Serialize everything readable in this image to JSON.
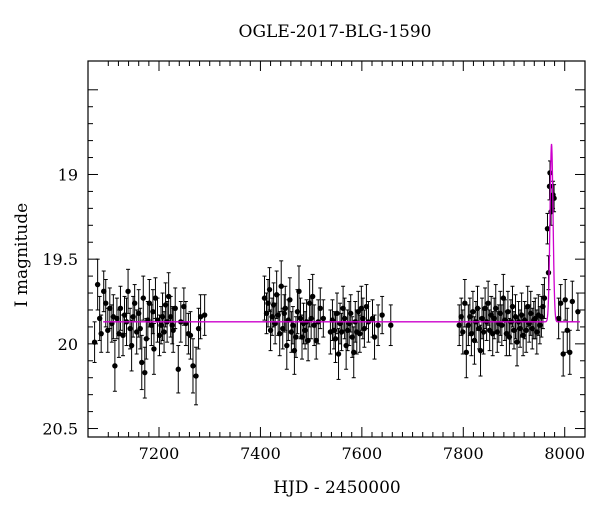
{
  "chart_data": {
    "type": "scatter",
    "title": "OGLE-2017-BLG-1590",
    "xlabel": "HJD - 2450000",
    "ylabel": "I magnitude",
    "xlim": [
      7060,
      8040
    ],
    "ylim": [
      20.55,
      18.33
    ],
    "y_inverted": true,
    "x_ticks": [
      7200,
      7400,
      7600,
      7800,
      8000
    ],
    "x_tick_labels": [
      "7200",
      "7400",
      "7600",
      "7800",
      "8000"
    ],
    "y_ticks": [
      19,
      19.5,
      20,
      20.5
    ],
    "y_tick_labels": [
      "19",
      "19.5",
      "20",
      "20.5"
    ],
    "grid": false,
    "colors": {
      "data": "#000000",
      "model": "#cc00cc"
    },
    "series": [
      {
        "kind": "points_with_errorbars",
        "points": [
          [
            7073,
            19.99,
            0.12
          ],
          [
            7079,
            19.65,
            0.15
          ],
          [
            7083,
            19.85,
            0.13
          ],
          [
            7086,
            19.94,
            0.11
          ],
          [
            7091,
            19.69,
            0.12
          ],
          [
            7095,
            19.76,
            0.14
          ],
          [
            7099,
            19.92,
            0.13
          ],
          [
            7103,
            19.79,
            0.12
          ],
          [
            7107,
            19.88,
            0.11
          ],
          [
            7110,
            19.84,
            0.13
          ],
          [
            7113,
            20.13,
            0.15
          ],
          [
            7117,
            19.85,
            0.12
          ],
          [
            7121,
            19.94,
            0.14
          ],
          [
            7124,
            19.79,
            0.13
          ],
          [
            7129,
            19.95,
            0.12
          ],
          [
            7132,
            19.83,
            0.11
          ],
          [
            7136,
            19.87,
            0.14
          ],
          [
            7139,
            19.69,
            0.13
          ],
          [
            7143,
            19.91,
            0.12
          ],
          [
            7146,
            20.01,
            0.15
          ],
          [
            7149,
            19.84,
            0.12
          ],
          [
            7152,
            19.76,
            0.11
          ],
          [
            7156,
            19.93,
            0.13
          ],
          [
            7160,
            19.82,
            0.14
          ],
          [
            7163,
            19.91,
            0.12
          ],
          [
            7166,
            20.11,
            0.16
          ],
          [
            7169,
            19.73,
            0.13
          ],
          [
            7172,
            20.17,
            0.15
          ],
          [
            7175,
            19.97,
            0.12
          ],
          [
            7178,
            19.86,
            0.11
          ],
          [
            7181,
            19.76,
            0.14
          ],
          [
            7185,
            19.89,
            0.12
          ],
          [
            7188,
            19.81,
            0.13
          ],
          [
            7190,
            20.03,
            0.15
          ],
          [
            7193,
            19.73,
            0.12
          ],
          [
            7197,
            19.86,
            0.13
          ],
          [
            7201,
            19.95,
            0.12
          ],
          [
            7204,
            19.89,
            0.11
          ],
          [
            7207,
            19.84,
            0.14
          ],
          [
            7210,
            19.93,
            0.12
          ],
          [
            7213,
            19.77,
            0.13
          ],
          [
            7216,
            19.87,
            0.12
          ],
          [
            7219,
            19.72,
            0.14
          ],
          [
            7223,
            19.84,
            0.12
          ],
          [
            7226,
            19.89,
            0.11
          ],
          [
            7228,
            19.92,
            0.13
          ],
          [
            7232,
            19.79,
            0.12
          ],
          [
            7238,
            20.15,
            0.14
          ],
          [
            7243,
            19.87,
            0.12
          ],
          [
            7249,
            19.78,
            0.11
          ],
          [
            7253,
            19.88,
            0.13
          ],
          [
            7258,
            19.94,
            0.12
          ],
          [
            7262,
            19.95,
            0.14
          ],
          [
            7267,
            20.13,
            0.16
          ],
          [
            7273,
            20.19,
            0.17
          ],
          [
            7278,
            19.91,
            0.12
          ],
          [
            7282,
            19.84,
            0.13
          ],
          [
            7290,
            19.83,
            0.12
          ],
          [
            7408,
            19.73,
            0.13
          ],
          [
            7412,
            19.82,
            0.12
          ],
          [
            7415,
            19.76,
            0.14
          ],
          [
            7418,
            19.68,
            0.13
          ],
          [
            7420,
            19.92,
            0.12
          ],
          [
            7423,
            19.84,
            0.11
          ],
          [
            7426,
            19.77,
            0.13
          ],
          [
            7429,
            19.88,
            0.12
          ],
          [
            7432,
            19.71,
            0.14
          ],
          [
            7435,
            19.83,
            0.12
          ],
          [
            7438,
            19.94,
            0.13
          ],
          [
            7441,
            19.66,
            0.15
          ],
          [
            7444,
            19.91,
            0.12
          ],
          [
            7447,
            19.82,
            0.11
          ],
          [
            7449,
            19.79,
            0.13
          ],
          [
            7452,
            20.01,
            0.14
          ],
          [
            7455,
            19.86,
            0.12
          ],
          [
            7458,
            19.74,
            0.13
          ],
          [
            7461,
            19.93,
            0.12
          ],
          [
            7464,
            19.89,
            0.11
          ],
          [
            7467,
            20.04,
            0.14
          ],
          [
            7470,
            19.96,
            0.12
          ],
          [
            7473,
            19.81,
            0.13
          ],
          [
            7476,
            19.69,
            0.15
          ],
          [
            7479,
            19.85,
            0.12
          ],
          [
            7482,
            19.96,
            0.13
          ],
          [
            7485,
            19.88,
            0.12
          ],
          [
            7488,
            19.92,
            0.11
          ],
          [
            7491,
            19.87,
            0.13
          ],
          [
            7494,
            19.98,
            0.12
          ],
          [
            7497,
            19.76,
            0.14
          ],
          [
            7500,
            19.85,
            0.12
          ],
          [
            7503,
            19.72,
            0.13
          ],
          [
            7506,
            19.89,
            0.12
          ],
          [
            7510,
            19.98,
            0.11
          ],
          [
            7514,
            19.87,
            0.13
          ],
          [
            7518,
            19.79,
            0.12
          ],
          [
            7524,
            19.85,
            0.11
          ],
          [
            7538,
            19.93,
            0.13
          ],
          [
            7542,
            19.86,
            0.12
          ],
          [
            7545,
            19.92,
            0.11
          ],
          [
            7548,
            19.97,
            0.14
          ],
          [
            7551,
            19.82,
            0.12
          ],
          [
            7554,
            20.06,
            0.15
          ],
          [
            7557,
            19.88,
            0.12
          ],
          [
            7560,
            19.93,
            0.11
          ],
          [
            7563,
            19.79,
            0.13
          ],
          [
            7566,
            19.85,
            0.12
          ],
          [
            7569,
            20.01,
            0.14
          ],
          [
            7572,
            19.92,
            0.12
          ],
          [
            7575,
            19.88,
            0.13
          ],
          [
            7578,
            19.82,
            0.11
          ],
          [
            7581,
            19.96,
            0.12
          ],
          [
            7584,
            20.05,
            0.15
          ],
          [
            7587,
            19.87,
            0.12
          ],
          [
            7590,
            19.93,
            0.13
          ],
          [
            7593,
            19.81,
            0.12
          ],
          [
            7596,
            19.94,
            0.11
          ],
          [
            7599,
            19.79,
            0.13
          ],
          [
            7602,
            19.85,
            0.12
          ],
          [
            7605,
            19.91,
            0.11
          ],
          [
            7609,
            19.78,
            0.13
          ],
          [
            7613,
            19.87,
            0.12
          ],
          [
            7621,
            19.85,
            0.11
          ],
          [
            7625,
            19.96,
            0.13
          ],
          [
            7632,
            19.89,
            0.12
          ],
          [
            7640,
            19.83,
            0.11
          ],
          [
            7657,
            19.89,
            0.12
          ],
          [
            7792,
            19.89,
            0.12
          ],
          [
            7796,
            19.84,
            0.11
          ],
          [
            7799,
            19.93,
            0.13
          ],
          [
            7803,
            19.76,
            0.14
          ],
          [
            7806,
            20.05,
            0.15
          ],
          [
            7810,
            19.89,
            0.12
          ],
          [
            7813,
            19.84,
            0.11
          ],
          [
            7816,
            19.94,
            0.13
          ],
          [
            7819,
            19.81,
            0.12
          ],
          [
            7822,
            19.98,
            0.14
          ],
          [
            7825,
            19.87,
            0.12
          ],
          [
            7828,
            19.79,
            0.13
          ],
          [
            7831,
            19.91,
            0.12
          ],
          [
            7834,
            20.04,
            0.15
          ],
          [
            7837,
            19.85,
            0.12
          ],
          [
            7840,
            19.93,
            0.13
          ],
          [
            7843,
            19.79,
            0.12
          ],
          [
            7846,
            19.87,
            0.11
          ],
          [
            7849,
            19.76,
            0.13
          ],
          [
            7852,
            19.92,
            0.12
          ],
          [
            7855,
            19.83,
            0.11
          ],
          [
            7858,
            19.94,
            0.13
          ],
          [
            7861,
            19.85,
            0.12
          ],
          [
            7864,
            19.79,
            0.14
          ],
          [
            7867,
            19.93,
            0.12
          ],
          [
            7870,
            19.88,
            0.11
          ],
          [
            7873,
            19.82,
            0.13
          ],
          [
            7876,
            19.89,
            0.12
          ],
          [
            7879,
            19.73,
            0.14
          ],
          [
            7882,
            19.86,
            0.12
          ],
          [
            7885,
            19.94,
            0.13
          ],
          [
            7888,
            19.81,
            0.12
          ],
          [
            7891,
            19.96,
            0.11
          ],
          [
            7894,
            19.87,
            0.13
          ],
          [
            7897,
            19.78,
            0.12
          ],
          [
            7900,
            19.92,
            0.11
          ],
          [
            7903,
            19.84,
            0.13
          ],
          [
            7906,
            19.99,
            0.14
          ],
          [
            7909,
            19.87,
            0.12
          ],
          [
            7912,
            19.91,
            0.11
          ],
          [
            7915,
            19.83,
            0.13
          ],
          [
            7918,
            19.95,
            0.12
          ],
          [
            7921,
            19.86,
            0.11
          ],
          [
            7924,
            19.92,
            0.13
          ],
          [
            7927,
            19.78,
            0.12
          ],
          [
            7930,
            19.88,
            0.11
          ],
          [
            7933,
            19.82,
            0.13
          ],
          [
            7936,
            19.91,
            0.12
          ],
          [
            7939,
            19.86,
            0.11
          ],
          [
            7942,
            19.85,
            0.12
          ],
          [
            7945,
            19.93,
            0.13
          ],
          [
            7948,
            19.83,
            0.12
          ],
          [
            7951,
            19.89,
            0.11
          ],
          [
            7954,
            19.84,
            0.12
          ],
          [
            7957,
            19.78,
            0.13
          ],
          [
            7960,
            19.73,
            0.12
          ],
          [
            7966,
            19.32,
            0.09
          ],
          [
            7968,
            19.58,
            0.1
          ],
          [
            7970,
            19.07,
            0.08
          ],
          [
            7971,
            18.99,
            0.07
          ],
          [
            7973,
            19.22,
            0.08
          ],
          [
            7975,
            19.14,
            0.08
          ],
          [
            7977,
            19.12,
            0.08
          ],
          [
            7979,
            19.14,
            0.08
          ],
          [
            7988,
            19.85,
            0.12
          ],
          [
            7992,
            19.76,
            0.11
          ],
          [
            7997,
            20.06,
            0.13
          ],
          [
            8001,
            19.74,
            0.12
          ],
          [
            8005,
            19.92,
            0.13
          ],
          [
            8010,
            20.05,
            0.13
          ],
          [
            8015,
            19.75,
            0.12
          ],
          [
            8026,
            19.81,
            0.11
          ]
        ]
      },
      {
        "kind": "model_curve",
        "baseline": 19.87,
        "peak_time": 7974,
        "peak_magnitude": 18.82,
        "color": "#cc00cc"
      }
    ]
  }
}
